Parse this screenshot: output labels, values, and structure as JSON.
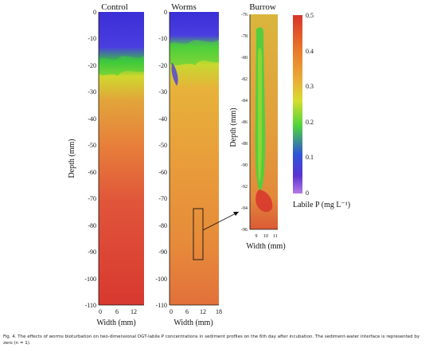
{
  "figure": {
    "panels": [
      {
        "title": "Control",
        "xlabel": "Width (mm)",
        "ylabel": "Depth (mm)",
        "xticks": [
          "0",
          "6",
          "12"
        ],
        "yticks": [
          "0",
          "-10",
          "-20",
          "-30",
          "-40",
          "-50",
          "-60",
          "-70",
          "-80",
          "-90",
          "-100",
          "-110"
        ]
      },
      {
        "title": "Worms",
        "xlabel": "Width (mm)",
        "xticks": [
          "0",
          "6",
          "12",
          "18"
        ],
        "yticks": [
          "0",
          "-10",
          "-20",
          "-30",
          "-40",
          "-50",
          "-60",
          "-70",
          "-80",
          "-90",
          "-100",
          "-110"
        ]
      },
      {
        "title": "Burrow",
        "xlabel": "Width (mm)",
        "ylabel": "Depth (mm)",
        "xticks": [
          "9",
          "10",
          "11"
        ],
        "yticks": [
          "-76",
          "-78",
          "-80",
          "-82",
          "-84",
          "-86",
          "-88",
          "-90",
          "-92",
          "-94",
          "-96"
        ]
      }
    ],
    "colorbar": {
      "label": "Labile P (mg L⁻¹)",
      "ticks": [
        "0.5",
        "0.4",
        "0.3",
        "0.2",
        "0.1",
        "0"
      ],
      "colors": [
        "#d8332a",
        "#e97a2a",
        "#e9b238",
        "#d6dd2e",
        "#4fd43b",
        "#2e55d8",
        "#5a33d0",
        "#b57ae6"
      ]
    },
    "caption": "Fig. 4. The effects of worms bioturbation on two-dimensional DGT-labile P concentrations in sediment profiles on the 6th day after incubation. The sediment-water interface is represented by zero (n = 1)."
  },
  "chart_data": {
    "type": "heatmap",
    "colorbar_range": [
      0,
      0.5
    ],
    "colorbar_label": "Labile P (mg L⁻¹)",
    "panels": [
      {
        "title": "Control",
        "xlabel": "Width (mm)",
        "ylabel": "Depth (mm)",
        "xlim": [
          0,
          14
        ],
        "ylim": [
          -110,
          10
        ]
      },
      {
        "title": "Worms",
        "xlabel": "Width (mm)",
        "xlim": [
          0,
          18
        ],
        "ylim": [
          -110,
          10
        ]
      },
      {
        "title": "Burrow",
        "xlabel": "Width (mm)",
        "ylabel": "Depth (mm)",
        "xlim": [
          8.5,
          11.2
        ],
        "ylim": [
          -96,
          -76
        ]
      }
    ]
  }
}
